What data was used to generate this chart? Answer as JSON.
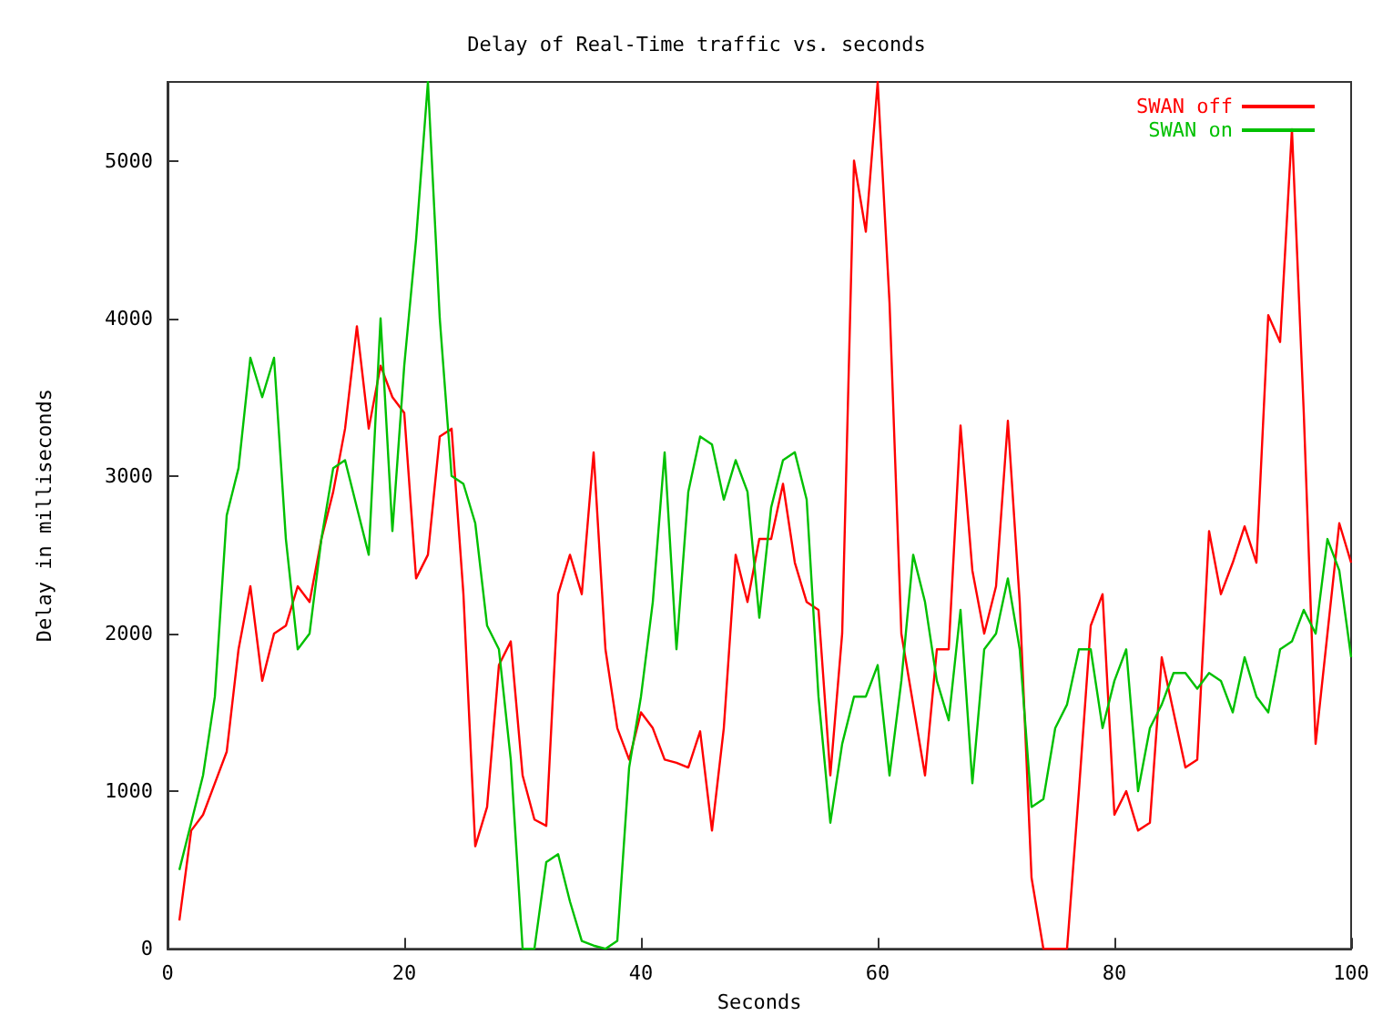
{
  "chart_data": {
    "type": "line",
    "title": "Delay of Real-Time traffic vs. seconds",
    "xlabel": "Seconds",
    "ylabel": "Delay in milliseconds",
    "x": [
      1,
      2,
      3,
      4,
      5,
      6,
      7,
      8,
      9,
      10,
      11,
      12,
      13,
      14,
      15,
      16,
      17,
      18,
      19,
      20,
      21,
      22,
      23,
      24,
      25,
      26,
      27,
      28,
      29,
      30,
      31,
      32,
      33,
      34,
      35,
      36,
      37,
      38,
      39,
      40,
      41,
      42,
      43,
      44,
      45,
      46,
      47,
      48,
      49,
      50,
      51,
      52,
      53,
      54,
      55,
      56,
      57,
      58,
      59,
      60,
      61,
      62,
      63,
      64,
      65,
      66,
      67,
      68,
      69,
      70,
      71,
      72,
      73,
      74,
      75,
      76,
      77,
      78,
      79,
      80,
      81,
      82,
      83,
      84,
      85,
      86,
      87,
      88,
      89,
      90,
      91,
      92,
      93,
      94,
      95,
      96,
      97,
      98,
      99,
      100
    ],
    "series": [
      {
        "name": "SWAN off",
        "color": "#ff0000",
        "values": [
          180,
          750,
          850,
          1050,
          1250,
          1900,
          2300,
          1700,
          2000,
          2050,
          2300,
          2200,
          2600,
          2900,
          3300,
          3950,
          3300,
          3700,
          3500,
          3400,
          2350,
          2500,
          3250,
          3300,
          2250,
          650,
          900,
          1800,
          1950,
          1100,
          820,
          780,
          2250,
          2500,
          2250,
          3150,
          1900,
          1400,
          1200,
          1500,
          1400,
          1200,
          1180,
          1150,
          1380,
          750,
          1400,
          2500,
          2200,
          2600,
          2600,
          2950,
          2450,
          2200,
          2150,
          1100,
          2000,
          5000,
          4550,
          5500,
          4100,
          2000,
          1550,
          1100,
          1900,
          1900,
          3320,
          2400,
          2000,
          2300,
          3350,
          2200,
          450,
          0,
          0,
          0,
          1000,
          2050,
          2250,
          850,
          1000,
          750,
          800,
          1850,
          1500,
          1150,
          1200,
          2650,
          2250,
          2450,
          2680,
          2450,
          4020,
          3850,
          5200,
          3400,
          1300,
          2000,
          2700,
          2450
        ]
      },
      {
        "name": "SWAN on",
        "color": "#00c000",
        "values": [
          500,
          800,
          1100,
          1600,
          2750,
          3050,
          3750,
          3500,
          3750,
          2600,
          1900,
          2000,
          2600,
          3050,
          3100,
          2800,
          2500,
          4000,
          2650,
          3700,
          4500,
          5500,
          4000,
          3000,
          2950,
          2700,
          2050,
          1900,
          1200,
          0,
          0,
          550,
          600,
          300,
          50,
          20,
          0,
          50,
          1150,
          1600,
          2200,
          3150,
          1900,
          2900,
          3250,
          3200,
          2850,
          3100,
          2900,
          2100,
          2800,
          3100,
          3150,
          2850,
          1600,
          800,
          1300,
          1600,
          1600,
          1800,
          1100,
          1700,
          2500,
          2200,
          1700,
          1450,
          2150,
          1050,
          1900,
          2000,
          2350,
          1900,
          900,
          950,
          1400,
          1550,
          1900,
          1900,
          1400,
          1700,
          1900,
          1000,
          1400,
          1550,
          1750,
          1750,
          1650,
          1750,
          1700,
          1500,
          1850,
          1600,
          1500,
          1900,
          1950,
          2150,
          2000,
          2600,
          2400,
          1850
        ]
      }
    ],
    "xlim": [
      0,
      100
    ],
    "xticks": [
      0,
      20,
      40,
      60,
      80,
      100
    ],
    "ylim": [
      0,
      5500
    ],
    "yticks": [
      0,
      1000,
      2000,
      3000,
      4000,
      5000
    ],
    "legend": "top right",
    "grid": false,
    "marker": "none",
    "line_style": "solid"
  }
}
